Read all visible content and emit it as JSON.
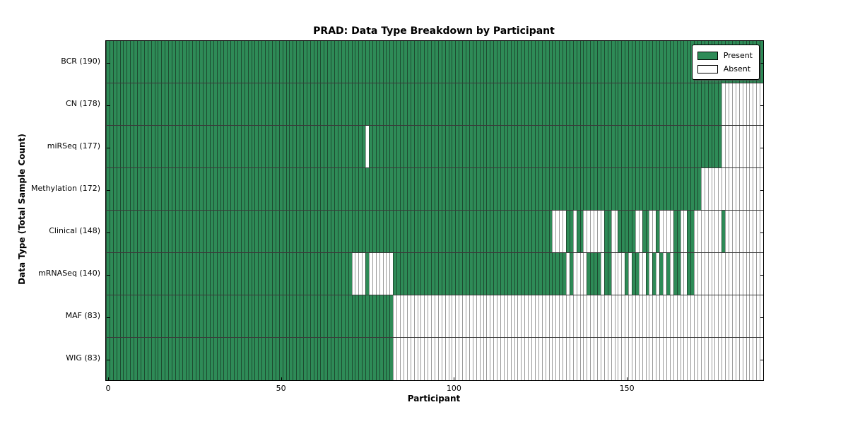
{
  "chart_data": {
    "type": "heatmap",
    "title": "PRAD: Data Type Breakdown by Participant",
    "xlabel": "Participant",
    "ylabel": "Data Type (Total Sample Count)",
    "x_ticks": [
      0,
      50,
      100,
      150
    ],
    "x_range": [
      0,
      190
    ],
    "n_participants": 190,
    "grid": "row-separators",
    "legend_position": "upper-right",
    "legend": [
      {
        "label": "Present",
        "color": "#2e8b57"
      },
      {
        "label": "Absent",
        "color": "#ffffff"
      }
    ],
    "colors": {
      "present_fill": "#2e8b57",
      "present_edge": "#1d4b30",
      "absent_fill": "#ffffff",
      "absent_edge": "#9a9a9a",
      "row_gridline": "#3a3a3a",
      "spine": "#000000"
    },
    "rows": [
      {
        "label": "BCR (190)",
        "data_type": "BCR",
        "total_samples": 190,
        "present_ranges": [
          [
            0,
            189
          ]
        ]
      },
      {
        "label": "CN (178)",
        "data_type": "CN",
        "total_samples": 178,
        "present_ranges": [
          [
            0,
            177
          ]
        ]
      },
      {
        "label": "miRSeq (177)",
        "data_type": "miRSeq",
        "total_samples": 177,
        "present_ranges": [
          [
            0,
            74
          ],
          [
            76,
            177
          ]
        ]
      },
      {
        "label": "Methylation (172)",
        "data_type": "Methylation",
        "total_samples": 172,
        "present_ranges": [
          [
            0,
            171
          ]
        ]
      },
      {
        "label": "Clinical (148)",
        "data_type": "Clinical",
        "total_samples": 148,
        "present_ranges": [
          [
            0,
            128
          ],
          [
            133,
            134
          ],
          [
            136,
            137
          ],
          [
            144,
            145
          ],
          [
            148,
            152
          ],
          [
            155,
            156
          ],
          [
            159,
            159
          ],
          [
            164,
            165
          ],
          [
            168,
            169
          ],
          [
            178,
            178
          ]
        ]
      },
      {
        "label": "mRNASeq (140)",
        "data_type": "mRNASeq",
        "total_samples": 140,
        "present_ranges": [
          [
            0,
            70
          ],
          [
            75,
            75
          ],
          [
            83,
            132
          ],
          [
            134,
            134
          ],
          [
            139,
            142
          ],
          [
            144,
            145
          ],
          [
            150,
            150
          ],
          [
            152,
            153
          ],
          [
            156,
            156
          ],
          [
            158,
            158
          ],
          [
            160,
            160
          ],
          [
            162,
            162
          ],
          [
            164,
            165
          ],
          [
            168,
            169
          ]
        ]
      },
      {
        "label": "MAF (83)",
        "data_type": "MAF",
        "total_samples": 83,
        "present_ranges": [
          [
            0,
            82
          ]
        ]
      },
      {
        "label": "WIG (83)",
        "data_type": "WIG",
        "total_samples": 83,
        "present_ranges": [
          [
            0,
            82
          ]
        ]
      }
    ]
  }
}
